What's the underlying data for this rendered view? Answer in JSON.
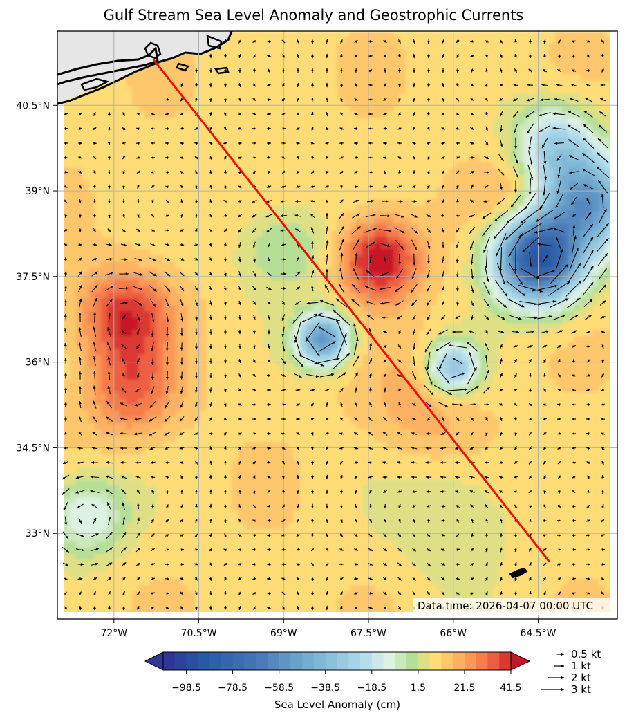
{
  "chart_data": {
    "type": "heatmap",
    "title": "Gulf Stream Sea Level Anomaly and Geostrophic Currents",
    "xlabel": "",
    "ylabel": "",
    "xlim": [
      -73.0,
      -63.1
    ],
    "ylim": [
      31.5,
      41.8
    ],
    "x_ticks": [
      {
        "value": -72.0,
        "label": "72°W"
      },
      {
        "value": -70.5,
        "label": "70.5°W"
      },
      {
        "value": -69.0,
        "label": "69°W"
      },
      {
        "value": -67.5,
        "label": "67.5°W"
      },
      {
        "value": -66.0,
        "label": "66°W"
      },
      {
        "value": -64.5,
        "label": "64.5°W"
      }
    ],
    "y_ticks": [
      {
        "value": 40.5,
        "label": "40.5°N"
      },
      {
        "value": 39.0,
        "label": "39°N"
      },
      {
        "value": 37.5,
        "label": "37.5°N"
      },
      {
        "value": 36.0,
        "label": "36°N"
      },
      {
        "value": 34.5,
        "label": "34.5°N"
      },
      {
        "value": 33.0,
        "label": "33°N"
      }
    ],
    "grid": true,
    "background_level_cm": 10,
    "features": [
      {
        "kind": "warm",
        "lon": -67.3,
        "lat": 37.8,
        "amplitude_cm": 38,
        "radius_deg": 0.7
      },
      {
        "kind": "warm",
        "lon": -71.8,
        "lat": 36.8,
        "amplitude_cm": 30,
        "radius_deg": 0.8
      },
      {
        "kind": "warm",
        "lon": -71.7,
        "lat": 35.5,
        "amplitude_cm": 22,
        "radius_deg": 0.8
      },
      {
        "kind": "warm",
        "lon": -66.5,
        "lat": 35.2,
        "amplitude_cm": 10,
        "radius_deg": 1.0
      },
      {
        "kind": "warm",
        "lon": -65.0,
        "lat": 38.9,
        "amplitude_cm": 10,
        "radius_deg": 0.6
      },
      {
        "kind": "cold",
        "lon": -64.5,
        "lat": 37.8,
        "amplitude_cm": -100,
        "radius_deg": 0.75
      },
      {
        "kind": "cold",
        "lon": -63.6,
        "lat": 38.8,
        "amplitude_cm": -60,
        "radius_deg": 0.8
      },
      {
        "kind": "cold",
        "lon": -64.2,
        "lat": 39.8,
        "amplitude_cm": -35,
        "radius_deg": 0.7
      },
      {
        "kind": "cold",
        "lon": -68.3,
        "lat": 36.4,
        "amplitude_cm": -65,
        "radius_deg": 0.45
      },
      {
        "kind": "cold",
        "lon": -66.0,
        "lat": 35.9,
        "amplitude_cm": -45,
        "radius_deg": 0.45
      },
      {
        "kind": "cold",
        "lon": -72.5,
        "lat": 33.3,
        "amplitude_cm": -25,
        "radius_deg": 0.7
      },
      {
        "kind": "cold",
        "lon": -69.0,
        "lat": 38.0,
        "amplitude_cm": -15,
        "radius_deg": 0.8
      },
      {
        "kind": "cold",
        "lon": -66.0,
        "lat": 33.3,
        "amplitude_cm": -10,
        "radius_deg": 1.1
      }
    ],
    "section_line": {
      "color": "#ee1100",
      "start": {
        "lon": -71.3,
        "lat": 41.3
      },
      "end": {
        "lon": -64.3,
        "lat": 32.5
      }
    },
    "colorbar": {
      "label": "Sea Level Anomaly (cm)",
      "vmin": -108.5,
      "vmax": 41.5,
      "step_cm": 5,
      "ticks": [
        {
          "value": -98.5,
          "label": "−98.5"
        },
        {
          "value": -78.5,
          "label": "−78.5"
        },
        {
          "value": -58.5,
          "label": "−58.5"
        },
        {
          "value": -38.5,
          "label": "−38.5"
        },
        {
          "value": -18.5,
          "label": "−18.5"
        },
        {
          "value": 1.5,
          "label": "1.5"
        },
        {
          "value": 21.5,
          "label": "21.5"
        },
        {
          "value": 41.5,
          "label": "41.5"
        }
      ]
    },
    "quiver_key": [
      {
        "speed_kt": 0.5,
        "label": "0.5 kt"
      },
      {
        "speed_kt": 1,
        "label": "1 kt"
      },
      {
        "speed_kt": 2,
        "label": "2 kt"
      },
      {
        "speed_kt": 3,
        "label": "3 kt"
      }
    ],
    "annotation": "Data time: 2026-04-07 00:00 UTC",
    "land_color": "#e6e6e6"
  }
}
